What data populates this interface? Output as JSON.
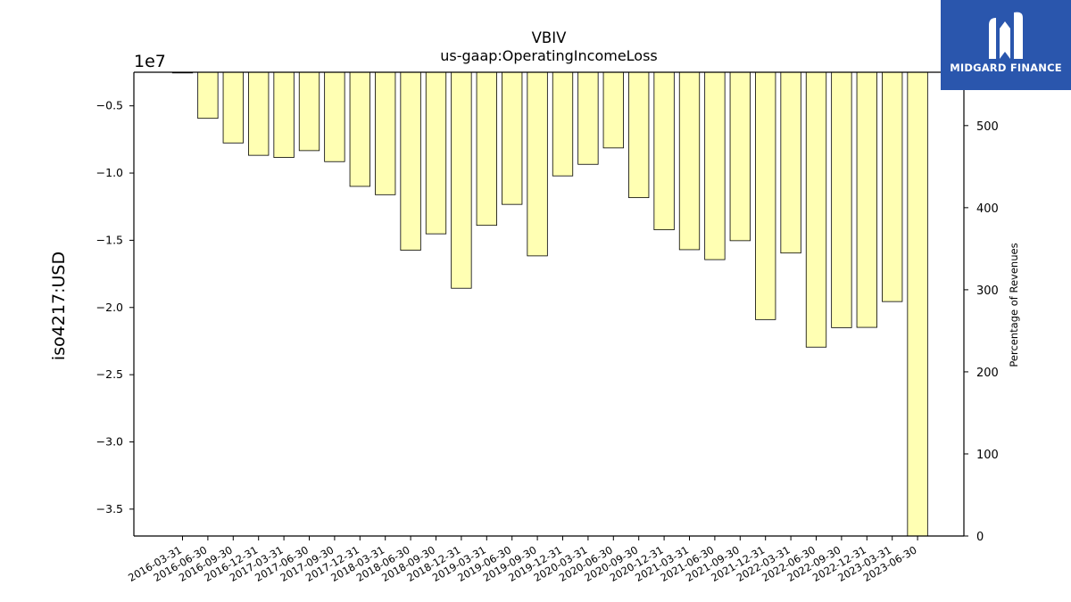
{
  "chart_data": {
    "type": "bar",
    "title": "VBIV",
    "subtitle": "us-gaap:OperatingIncomeLoss",
    "ylabel": "iso4217:USD",
    "y2label": "Percentage of Revenues",
    "offset_label": "1e7",
    "categories": [
      "2016-03-31",
      "2016-06-30",
      "2016-09-30",
      "2016-12-31",
      "2017-03-31",
      "2017-06-30",
      "2017-09-30",
      "2017-12-31",
      "2018-03-31",
      "2018-06-30",
      "2018-09-30",
      "2018-12-31",
      "2019-03-31",
      "2019-06-30",
      "2019-09-30",
      "2019-12-31",
      "2020-03-31",
      "2020-06-30",
      "2020-09-30",
      "2020-12-31",
      "2021-03-31",
      "2021-06-30",
      "2021-09-30",
      "2021-12-31",
      "2022-03-31",
      "2022-06-30",
      "2022-09-30",
      "2022-12-31",
      "2023-03-31",
      "2023-06-30"
    ],
    "values": [
      -230000,
      -5930000,
      -7760000,
      -8680000,
      -8840000,
      -8330000,
      -9150000,
      -10990000,
      -11610000,
      -15740000,
      -14520000,
      -18570000,
      -13890000,
      -12330000,
      -16160000,
      -10210000,
      -9350000,
      -8130000,
      -11830000,
      -14220000,
      -15700000,
      -16440000,
      -15030000,
      -20900000,
      -15950000,
      -22950000,
      -21500000,
      -21480000,
      -19560000,
      -37000000
    ],
    "ylim": [
      -37000000,
      -2500000
    ],
    "yticks": [
      -0.5,
      -1.0,
      -1.5,
      -2.0,
      -2.5,
      -3.0,
      -3.5
    ],
    "y2lim": [
      0,
      565
    ],
    "y2ticks": [
      0,
      100,
      200,
      300,
      400,
      500
    ],
    "bar_color": "#ffffb3",
    "bar_edge": "#000000",
    "grid": false,
    "legend": "none"
  },
  "logo": {
    "text": "MIDGARD FINANCE",
    "bg": "#2a56ad"
  }
}
